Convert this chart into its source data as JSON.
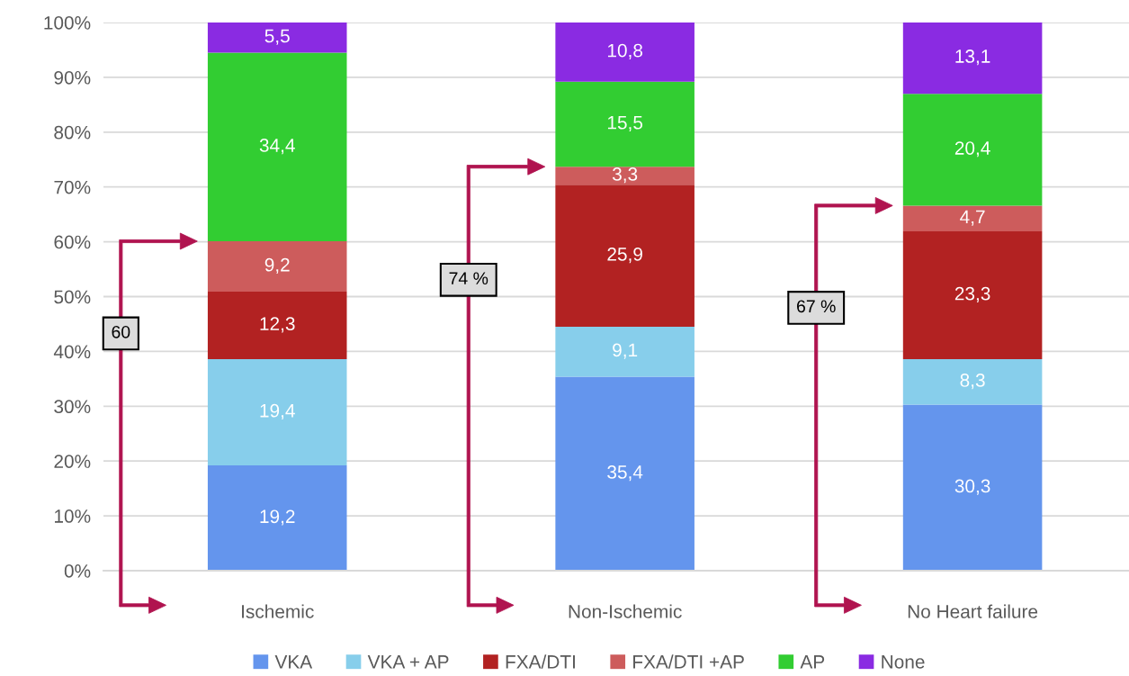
{
  "chart_data": {
    "type": "bar",
    "stacked": true,
    "categories": [
      "Ischemic",
      "Non-Ischemic",
      "No Heart failure"
    ],
    "series": [
      {
        "name": "VKA",
        "color": "#6495ed",
        "values": [
          19.2,
          35.4,
          30.3
        ],
        "value_labels": [
          "19,2",
          "35,4",
          "30,3"
        ]
      },
      {
        "name": "VKA + AP",
        "color": "#87ceeb",
        "values": [
          19.4,
          9.1,
          8.3
        ],
        "value_labels": [
          "19,4",
          "9,1",
          "8,3"
        ]
      },
      {
        "name": "FXA/DTI",
        "color": "#b22222",
        "values": [
          12.3,
          25.9,
          23.3
        ],
        "value_labels": [
          "12,3",
          "25,9",
          "23,3"
        ]
      },
      {
        "name": "FXA/DTI +AP",
        "color": "#cd5c5c",
        "values": [
          9.2,
          3.3,
          4.7
        ],
        "value_labels": [
          "9,2",
          "3,3",
          "4,7"
        ]
      },
      {
        "name": "AP",
        "color": "#32cd32",
        "values": [
          34.4,
          15.5,
          20.4
        ],
        "value_labels": [
          "34,4",
          "15,5",
          "20,4"
        ]
      },
      {
        "name": "None",
        "color": "#8a2be2",
        "values": [
          5.5,
          10.8,
          13.1
        ],
        "value_labels": [
          "5,5",
          "10,8",
          "13,1"
        ]
      }
    ],
    "ylim": [
      0,
      100
    ],
    "yticks": [
      {
        "value": 0,
        "label": "0%"
      },
      {
        "value": 10,
        "label": "10%"
      },
      {
        "value": 20,
        "label": "20%"
      },
      {
        "value": 30,
        "label": "30%"
      },
      {
        "value": 40,
        "label": "40%"
      },
      {
        "value": 50,
        "label": "50%"
      },
      {
        "value": 60,
        "label": "60%"
      },
      {
        "value": 70,
        "label": "70%"
      },
      {
        "value": 80,
        "label": "80%"
      },
      {
        "value": 90,
        "label": "90%"
      },
      {
        "value": 100,
        "label": "100%"
      }
    ],
    "grid": "y",
    "legend": "bottom",
    "annotations": [
      "60",
      "74 %",
      "67 %"
    ]
  }
}
